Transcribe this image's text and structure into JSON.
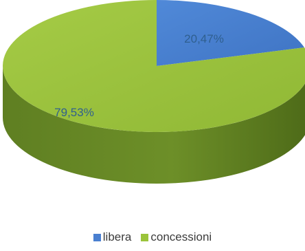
{
  "chart_data": {
    "type": "pie",
    "style": "3d",
    "series": [
      {
        "name": "libera",
        "value": 20.47,
        "label": "20,47%",
        "color": "#4a7fd0"
      },
      {
        "name": "concessioni",
        "value": 79.53,
        "label": "79,53%",
        "color": "#9bc43b"
      }
    ],
    "legend_position": "bottom"
  }
}
